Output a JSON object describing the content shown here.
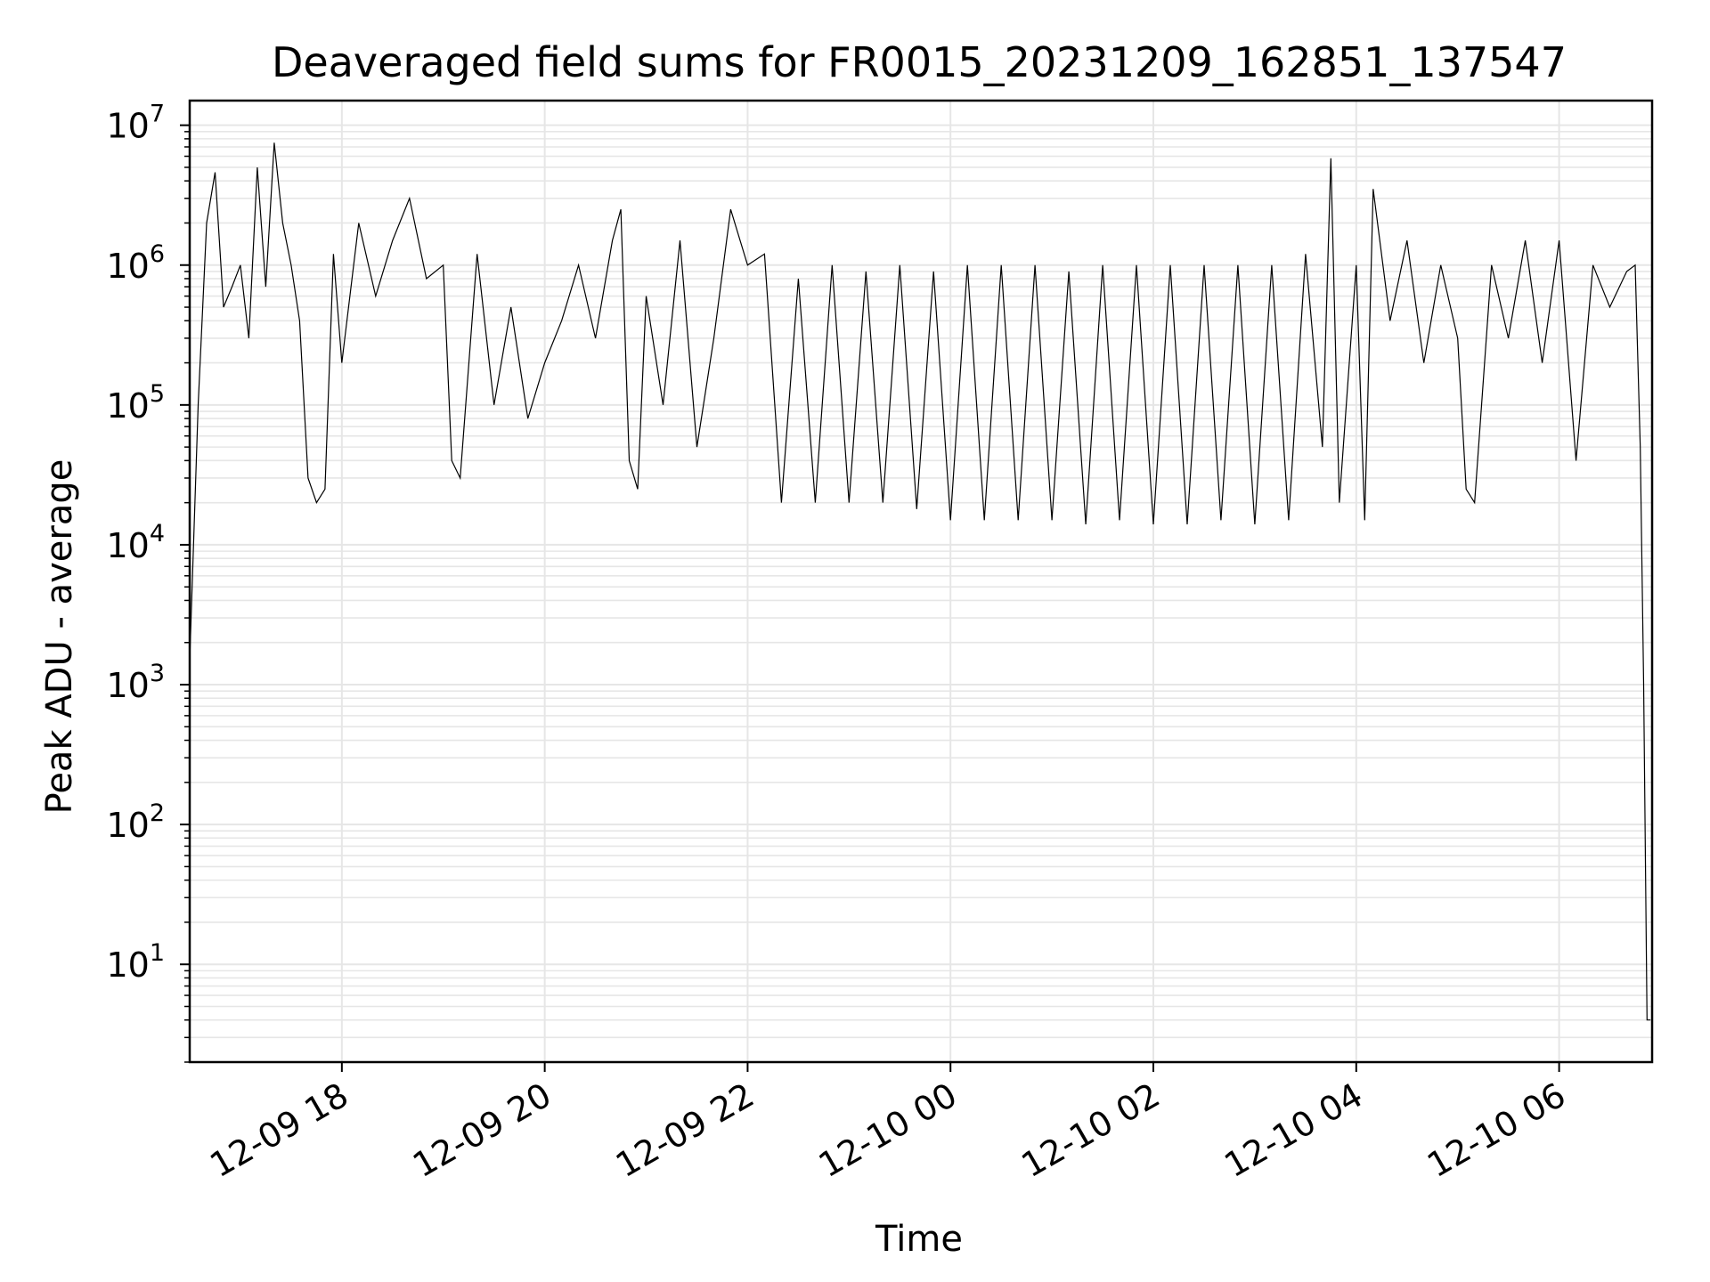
{
  "chart_data": {
    "type": "line",
    "title": "Deaveraged field sums for FR0015_20231209_162851_137547",
    "xlabel": "Time",
    "ylabel": "Peak ADU - average",
    "yscale": "log",
    "grid": true,
    "line_color": "#000000",
    "grid_color": "#e6e6e6",
    "xlim": [
      "2023-12-09 16:30",
      "2023-12-10 06:55"
    ],
    "ylim": [
      2,
      15000000
    ],
    "x_ticks": [
      {
        "value": "2023-12-09 18:00",
        "label": "12-09 18"
      },
      {
        "value": "2023-12-09 20:00",
        "label": "12-09 20"
      },
      {
        "value": "2023-12-09 22:00",
        "label": "12-09 22"
      },
      {
        "value": "2023-12-10 00:00",
        "label": "12-10 00"
      },
      {
        "value": "2023-12-10 02:00",
        "label": "12-10 02"
      },
      {
        "value": "2023-12-10 04:00",
        "label": "12-10 04"
      },
      {
        "value": "2023-12-10 06:00",
        "label": "12-10 06"
      }
    ],
    "y_ticks": [
      {
        "value": 10,
        "base": "10",
        "exp": "1"
      },
      {
        "value": 100,
        "base": "10",
        "exp": "2"
      },
      {
        "value": 1000,
        "base": "10",
        "exp": "3"
      },
      {
        "value": 10000,
        "base": "10",
        "exp": "4"
      },
      {
        "value": 100000,
        "base": "10",
        "exp": "5"
      },
      {
        "value": 1000000,
        "base": "10",
        "exp": "6"
      },
      {
        "value": 10000000,
        "base": "10",
        "exp": "7"
      }
    ],
    "series": [
      {
        "x": [
          "2023-12-09 16:30",
          "2023-12-09 16:35",
          "2023-12-09 16:40",
          "2023-12-09 16:45",
          "2023-12-09 16:50",
          "2023-12-09 16:55",
          "2023-12-09 17:00",
          "2023-12-09 17:05",
          "2023-12-09 17:10",
          "2023-12-09 17:15",
          "2023-12-09 17:20",
          "2023-12-09 17:25",
          "2023-12-09 17:30",
          "2023-12-09 17:35",
          "2023-12-09 17:40",
          "2023-12-09 17:45",
          "2023-12-09 17:50",
          "2023-12-09 17:55",
          "2023-12-09 18:00",
          "2023-12-09 18:10",
          "2023-12-09 18:20",
          "2023-12-09 18:30",
          "2023-12-09 18:40",
          "2023-12-09 18:50",
          "2023-12-09 19:00",
          "2023-12-09 19:05",
          "2023-12-09 19:10",
          "2023-12-09 19:20",
          "2023-12-09 19:30",
          "2023-12-09 19:40",
          "2023-12-09 19:50",
          "2023-12-09 20:00",
          "2023-12-09 20:10",
          "2023-12-09 20:20",
          "2023-12-09 20:30",
          "2023-12-09 20:40",
          "2023-12-09 20:45",
          "2023-12-09 20:50",
          "2023-12-09 20:55",
          "2023-12-09 21:00",
          "2023-12-09 21:10",
          "2023-12-09 21:20",
          "2023-12-09 21:30",
          "2023-12-09 21:40",
          "2023-12-09 21:50",
          "2023-12-09 22:00",
          "2023-12-09 22:10",
          "2023-12-09 22:20",
          "2023-12-09 22:30",
          "2023-12-09 22:40",
          "2023-12-09 22:50",
          "2023-12-09 23:00",
          "2023-12-09 23:10",
          "2023-12-09 23:20",
          "2023-12-09 23:30",
          "2023-12-09 23:40",
          "2023-12-09 23:50",
          "2023-12-10 00:00",
          "2023-12-10 00:10",
          "2023-12-10 00:20",
          "2023-12-10 00:30",
          "2023-12-10 00:40",
          "2023-12-10 00:50",
          "2023-12-10 01:00",
          "2023-12-10 01:10",
          "2023-12-10 01:20",
          "2023-12-10 01:30",
          "2023-12-10 01:40",
          "2023-12-10 01:50",
          "2023-12-10 02:00",
          "2023-12-10 02:10",
          "2023-12-10 02:20",
          "2023-12-10 02:30",
          "2023-12-10 02:40",
          "2023-12-10 02:50",
          "2023-12-10 03:00",
          "2023-12-10 03:10",
          "2023-12-10 03:20",
          "2023-12-10 03:30",
          "2023-12-10 03:40",
          "2023-12-10 03:45",
          "2023-12-10 03:50",
          "2023-12-10 04:00",
          "2023-12-10 04:05",
          "2023-12-10 04:10",
          "2023-12-10 04:20",
          "2023-12-10 04:30",
          "2023-12-10 04:40",
          "2023-12-10 04:50",
          "2023-12-10 05:00",
          "2023-12-10 05:05",
          "2023-12-10 05:10",
          "2023-12-10 05:20",
          "2023-12-10 05:30",
          "2023-12-10 05:40",
          "2023-12-10 05:50",
          "2023-12-10 06:00",
          "2023-12-10 06:10",
          "2023-12-10 06:20",
          "2023-12-10 06:30",
          "2023-12-10 06:40",
          "2023-12-10 06:45",
          "2023-12-10 06:48",
          "2023-12-10 06:50",
          "2023-12-10 06:52",
          "2023-12-10 06:54"
        ],
        "y": [
          1500,
          100000,
          2000000,
          4600000,
          500000,
          700000,
          1000000,
          300000,
          5000000,
          700000,
          7500000,
          2000000,
          1000000,
          400000,
          30000,
          20000,
          25000,
          1200000,
          200000,
          2000000,
          600000,
          1500000,
          3000000,
          800000,
          1000000,
          40000,
          30000,
          1200000,
          100000,
          500000,
          80000,
          200000,
          400000,
          1000000,
          300000,
          1500000,
          2500000,
          40000,
          25000,
          600000,
          100000,
          1500000,
          50000,
          300000,
          2500000,
          1000000,
          1200000,
          20000,
          800000,
          20000,
          1000000,
          20000,
          900000,
          20000,
          1000000,
          18000,
          900000,
          15000,
          1000000,
          15000,
          1000000,
          15000,
          1000000,
          15000,
          900000,
          14000,
          1000000,
          15000,
          1000000,
          14000,
          1000000,
          14000,
          1000000,
          15000,
          1000000,
          14000,
          1000000,
          15000,
          1200000,
          50000,
          5800000,
          20000,
          1000000,
          15000,
          3500000,
          400000,
          1500000,
          200000,
          1000000,
          300000,
          25000,
          20000,
          1000000,
          300000,
          1500000,
          200000,
          1500000,
          40000,
          1000000,
          500000,
          900000,
          1000000,
          50000,
          1000,
          4,
          4
        ]
      }
    ]
  }
}
